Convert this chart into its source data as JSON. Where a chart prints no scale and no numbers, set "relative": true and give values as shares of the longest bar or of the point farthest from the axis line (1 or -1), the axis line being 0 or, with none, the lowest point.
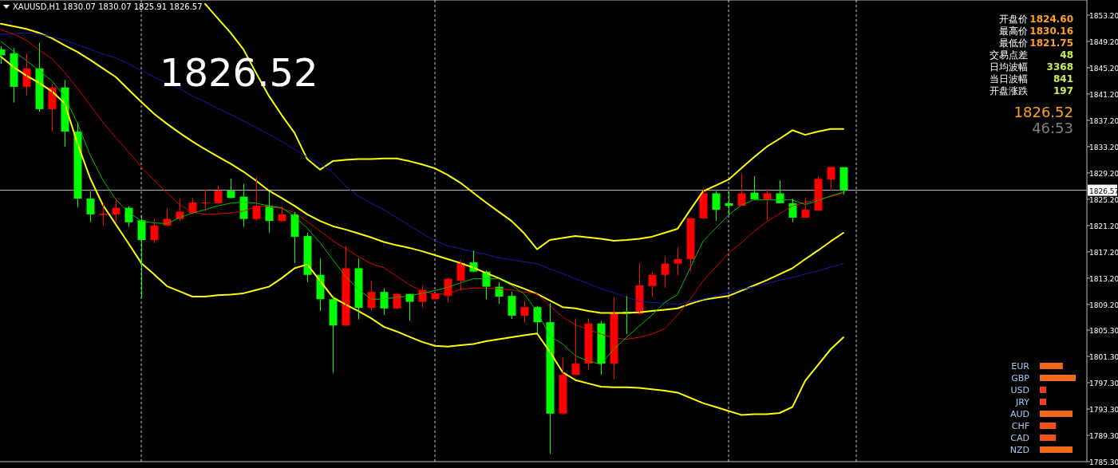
{
  "chart_data": [
    {
      "type": "candlestick",
      "title": "XAUUSD,H1  1830.07 1830.07 1825.91 1826.57",
      "categories": [
        null,
        null,
        null,
        null,
        null,
        null,
        null,
        null,
        null,
        null,
        null,
        null,
        null,
        null,
        null,
        null,
        null,
        null,
        null,
        null,
        null,
        null,
        null,
        null,
        null,
        null,
        null,
        null,
        null,
        null,
        null,
        null,
        null,
        null,
        null,
        null,
        null,
        null,
        null,
        null,
        null,
        null,
        null,
        null,
        null,
        null,
        null,
        null,
        null,
        null,
        null,
        null,
        null,
        null,
        null,
        null,
        null,
        null,
        null,
        null,
        null,
        null,
        null,
        null,
        null,
        null,
        null
      ],
      "ohlc": [
        [
          1848.0,
          1848.5,
          1845.8,
          1847.1
        ],
        [
          1847.4,
          1848.2,
          1839.9,
          1842.3
        ],
        [
          1842.3,
          1847.4,
          1841.0,
          1845.1
        ],
        [
          1845.1,
          1849.0,
          1838.5,
          1838.9
        ],
        [
          1838.9,
          1842.8,
          1835.5,
          1842.2
        ],
        [
          1842.2,
          1843.3,
          1833.2,
          1835.5
        ],
        [
          1835.5,
          1836.8,
          1824.0,
          1825.3
        ],
        [
          1825.3,
          1826.4,
          1821.7,
          1822.9
        ],
        [
          1822.8,
          1824.6,
          1821.2,
          1823.0
        ],
        [
          1822.9,
          1825.2,
          1821.7,
          1823.9
        ],
        [
          1823.9,
          1824.2,
          1821.0,
          1821.7
        ],
        [
          1822.0,
          1822.8,
          1810.3,
          1819.0
        ],
        [
          1819.0,
          1822.2,
          1818.5,
          1821.2
        ],
        [
          1821.2,
          1823.8,
          1821.0,
          1822.2
        ],
        [
          1822.2,
          1825.3,
          1821.9,
          1823.3
        ],
        [
          1823.1,
          1825.4,
          1822.9,
          1824.7
        ],
        [
          1824.6,
          1826.7,
          1823.3,
          1824.7
        ],
        [
          1824.6,
          1827.3,
          1824.4,
          1826.5
        ],
        [
          1826.5,
          1828.3,
          1825.3,
          1825.4
        ],
        [
          1825.6,
          1827.5,
          1821.0,
          1822.2
        ],
        [
          1822.2,
          1828.6,
          1821.9,
          1824.2
        ],
        [
          1824.2,
          1826.4,
          1820.1,
          1821.9
        ],
        [
          1821.9,
          1824.2,
          1821.7,
          1822.9
        ],
        [
          1822.9,
          1823.3,
          1815.5,
          1819.5
        ],
        [
          1819.6,
          1820.1,
          1812.6,
          1813.7
        ],
        [
          1813.7,
          1816.2,
          1808.2,
          1810.0
        ],
        [
          1810.0,
          1810.5,
          1798.8,
          1806.0
        ],
        [
          1806.0,
          1818.1,
          1805.9,
          1814.7
        ],
        [
          1814.7,
          1816.2,
          1806.9,
          1808.7
        ],
        [
          1808.7,
          1812.8,
          1808.2,
          1811.1
        ],
        [
          1811.1,
          1811.7,
          1807.6,
          1808.6
        ],
        [
          1808.6,
          1811.0,
          1808.5,
          1810.8
        ],
        [
          1810.8,
          1810.8,
          1806.7,
          1809.6
        ],
        [
          1809.6,
          1812.1,
          1808.7,
          1811.4
        ],
        [
          1810.0,
          1810.9,
          1809.9,
          1810.9
        ],
        [
          1810.5,
          1813.3,
          1809.6,
          1813.1
        ],
        [
          1812.8,
          1816.0,
          1811.3,
          1815.5
        ],
        [
          1815.6,
          1817.4,
          1814.1,
          1814.2
        ],
        [
          1814.2,
          1814.4,
          1810.0,
          1811.9
        ],
        [
          1811.9,
          1812.6,
          1809.3,
          1810.4
        ],
        [
          1810.5,
          1811.1,
          1807.0,
          1807.5
        ],
        [
          1807.5,
          1809.7,
          1806.4,
          1808.8
        ],
        [
          1808.8,
          1809.0,
          1804.8,
          1806.5
        ],
        [
          1806.5,
          1809.4,
          1786.5,
          1792.6
        ],
        [
          1792.6,
          1801.1,
          1792.4,
          1798.5
        ],
        [
          1798.5,
          1807.1,
          1798.4,
          1800.2
        ],
        [
          1800.2,
          1807.1,
          1799.3,
          1806.3
        ],
        [
          1806.3,
          1806.7,
          1798.5,
          1800.2
        ],
        [
          1800.2,
          1810.3,
          1797.8,
          1807.9
        ],
        [
          1808.1,
          1810.5,
          1804.7,
          1807.8
        ],
        [
          1807.8,
          1815.5,
          1807.6,
          1812.1
        ],
        [
          1812.0,
          1814.2,
          1810.3,
          1813.7
        ],
        [
          1813.7,
          1816.5,
          1811.7,
          1815.4
        ],
        [
          1815.4,
          1817.9,
          1813.6,
          1816.1
        ],
        [
          1816.1,
          1822.5,
          1814.2,
          1822.3
        ],
        [
          1822.3,
          1826.8,
          1822.2,
          1826.1
        ],
        [
          1826.1,
          1826.4,
          1821.9,
          1823.6
        ],
        [
          1824.6,
          1826.4,
          1822.8,
          1824.2
        ],
        [
          1824.2,
          1829.1,
          1824.2,
          1826.1
        ],
        [
          1826.2,
          1828.7,
          1825.1,
          1825.2
        ],
        [
          1825.2,
          1826.8,
          1822.0,
          1826.1
        ],
        [
          1826.1,
          1828.1,
          1824.6,
          1824.6
        ],
        [
          1824.6,
          1825.3,
          1821.7,
          1822.4
        ],
        [
          1822.4,
          1825.4,
          1822.4,
          1823.6
        ],
        [
          1823.5,
          1828.7,
          1823.4,
          1828.3
        ],
        [
          1828.2,
          1830.2,
          1826.5,
          1830.1
        ],
        [
          1830.07,
          1830.07,
          1825.91,
          1826.57
        ]
      ],
      "colors": [
        "#00ff00",
        "#00ff00",
        "#ff0000",
        "#00ff00",
        "#ff0000",
        "#00ff00",
        "#00ff00",
        "#00ff00",
        "#ff0000",
        "#ff0000",
        "#00ff00",
        "#00ff00",
        "#ff0000",
        "#ff0000",
        "#ff0000",
        "#ff0000",
        "#ff0000",
        "#ff0000",
        "#00ff00",
        "#00ff00",
        "#ff0000",
        "#00ff00",
        "#ff0000",
        "#00ff00",
        "#00ff00",
        "#00ff00",
        "#00ff00",
        "#ff0000",
        "#00ff00",
        "#ff0000",
        "#00ff00",
        "#ff0000",
        "#00ff00",
        "#ff0000",
        "#ff0000",
        "#ff0000",
        "#ff0000",
        "#00ff00",
        "#00ff00",
        "#00ff00",
        "#00ff00",
        "#ff0000",
        "#00ff00",
        "#00ff00",
        "#ff0000",
        "#ff0000",
        "#ff0000",
        "#00ff00",
        "#ff0000",
        "#00ff00",
        "#ff0000",
        "#ff0000",
        "#ff0000",
        "#ff0000",
        "#ff0000",
        "#ff0000",
        "#00ff00",
        "#00ff00",
        "#ff0000",
        "#00ff00",
        "#ff0000",
        "#00ff00",
        "#00ff00",
        "#ff0000",
        "#ff0000",
        "#ff0000",
        "#00ff00"
      ],
      "series": [
        {
          "type": "line",
          "color": "#ffff00",
          "values": [
            null,
            null,
            null,
            null,
            null,
            null,
            null,
            null,
            null,
            null,
            null,
            null,
            null,
            null,
            null,
            null,
            1854.9,
            1852.7,
            1850.5,
            1848.0,
            1844.4,
            1840.9,
            1838.0,
            1835.3,
            1831.3,
            1829.7,
            1831.0,
            1831.2,
            1831.3,
            1831.3,
            1831.4,
            1831.4,
            1831.0,
            1830.5,
            1829.9,
            1828.9,
            1827.7,
            1826.2,
            1824.7,
            1823.3,
            1821.9,
            1820.0,
            1817.6,
            1819.0,
            1819.3,
            1819.6,
            1819.4,
            1819.2,
            1818.9,
            1819.0,
            1819.2,
            1819.5,
            1820.1,
            1820.7,
            1823.6,
            1826.4,
            1827.3,
            1828.2,
            1829.9,
            1831.6,
            1833.2,
            1834.4,
            1835.7,
            1835.0,
            1835.5,
            1835.9,
            1835.9
          ]
        },
        {
          "type": "line",
          "color": "#ffff00",
          "values": [
            1851.9,
            1851.5,
            1851.1,
            1850.5,
            1849.7,
            1848.6,
            1847.6,
            1846.4,
            1845.1,
            1843.8,
            1841.9,
            1840.0,
            1838.2,
            1836.7,
            1835.3,
            1834.0,
            1832.8,
            1831.7,
            1830.6,
            1829.4,
            1828.0,
            1826.5,
            1825.4,
            1824.2,
            1822.9,
            1821.9,
            1821.1,
            1820.6,
            1820.0,
            1819.4,
            1818.7,
            1818.2,
            1817.8,
            1817.3,
            1816.7,
            1816.1,
            1815.5,
            1814.8,
            1814.0,
            1813.2,
            1812.3,
            1811.6,
            1810.8,
            1809.8,
            1808.8,
            1808.6,
            1808.2,
            1807.9,
            1807.9,
            1807.9,
            1808.0,
            1808.2,
            1808.4,
            1808.6,
            1809.3,
            1809.9,
            1810.2,
            1810.5,
            1811.3,
            1812.1,
            1812.9,
            1813.8,
            1814.7,
            1816.1,
            1817.4,
            1818.8,
            1820.1
          ]
        },
        {
          "type": "line",
          "color": "#ffff00",
          "values": [
            1846.9,
            1845.3,
            1844.0,
            1842.9,
            1841.6,
            1839.8,
            1833.7,
            1828.4,
            1824.3,
            1821.4,
            1818.5,
            1815.5,
            1813.8,
            1812.0,
            1811.2,
            1810.4,
            1810.4,
            1810.6,
            1810.7,
            1810.9,
            1811.4,
            1811.9,
            1813.2,
            1814.7,
            1815.3,
            1812.8,
            1810.3,
            1809.2,
            1808.2,
            1807.1,
            1805.8,
            1805.1,
            1804.3,
            1803.5,
            1802.9,
            1802.8,
            1803.0,
            1803.2,
            1803.6,
            1803.9,
            1804.2,
            1804.5,
            1804.8,
            1802.0,
            1798.9,
            1797.7,
            1797.2,
            1796.7,
            1796.6,
            1796.6,
            1796.5,
            1796.3,
            1796.1,
            1795.8,
            1795.0,
            1794.2,
            1793.6,
            1793.0,
            1792.4,
            1792.5,
            1792.5,
            1792.7,
            1793.6,
            1797.6,
            1800.0,
            1802.4,
            1804.2
          ]
        },
        {
          "type": "line",
          "color": "#1818b0",
          "values": [
            1850.3,
            1850.4,
            1850.5,
            1850.3,
            1849.9,
            1849.4,
            1848.7,
            1848.0,
            1847.3,
            1846.7,
            1845.8,
            1844.8,
            1843.8,
            1842.9,
            1842.0,
            1840.9,
            1840.0,
            1839.0,
            1838.1,
            1837.1,
            1836.1,
            1835.1,
            1834.0,
            1832.8,
            1831.6,
            1830.6,
            1829.3,
            1827.2,
            1825.7,
            1824.6,
            1823.6,
            1822.4,
            1821.2,
            1820.0,
            1818.9,
            1818.1,
            1817.7,
            1817.2,
            1816.8,
            1816.3,
            1816.0,
            1815.7,
            1815.4,
            1814.6,
            1813.9,
            1813.1,
            1812.4,
            1811.6,
            1811.0,
            1810.3,
            1809.7,
            1809.5,
            1809.4,
            1809.2,
            1809.6,
            1810.0,
            1810.5,
            1811.0,
            1811.5,
            1811.9,
            1812.4,
            1812.9,
            1813.3,
            1813.8,
            1814.3,
            1814.9,
            1815.4
          ]
        },
        {
          "type": "line",
          "color": "#e00000",
          "values": [
            1851.0,
            1850.3,
            1849.4,
            1847.9,
            1846.6,
            1844.5,
            1842.1,
            1839.5,
            1836.9,
            1834.6,
            1832.4,
            1830.1,
            1828.1,
            1826.2,
            1824.4,
            1823.2,
            1822.9,
            1823.0,
            1823.1,
            1823.4,
            1824.1,
            1824.1,
            1823.8,
            1823.2,
            1821.8,
            1820.4,
            1818.9,
            1817.7,
            1816.5,
            1815.4,
            1814.8,
            1813.5,
            1812.2,
            1811.2,
            1810.8,
            1810.8,
            1811.5,
            1811.7,
            1811.7,
            1811.6,
            1811.4,
            1811.1,
            1810.8,
            1809.0,
            1807.3,
            1806.1,
            1805.4,
            1804.7,
            1804.1,
            1803.9,
            1804.2,
            1804.7,
            1805.5,
            1807.6,
            1810.0,
            1812.8,
            1814.9,
            1817.0,
            1818.6,
            1820.3,
            1821.8,
            1823.0,
            1824.2,
            1824.7,
            1825.2,
            1825.6,
            1826.1
          ]
        },
        {
          "type": "line",
          "color": "#00c000",
          "values": [
            1849.2,
            1847.7,
            1846.3,
            1844.8,
            1843.2,
            1840.8,
            1836.8,
            1831.9,
            1828.1,
            1825.2,
            1823.2,
            1821.9,
            1821.6,
            1821.5,
            1822.4,
            1823.1,
            1823.6,
            1824.2,
            1824.6,
            1824.8,
            1824.6,
            1824.2,
            1823.9,
            1822.6,
            1820.8,
            1818.6,
            1816.0,
            1813.5,
            1811.5,
            1810.0,
            1810.0,
            1810.3,
            1810.5,
            1810.9,
            1811.3,
            1811.8,
            1812.5,
            1813.1,
            1813.1,
            1813.1,
            1812.1,
            1810.8,
            1808.1,
            1804.4,
            1803.2,
            1801.4,
            1800.6,
            1800.1,
            1802.4,
            1804.2,
            1805.9,
            1807.6,
            1809.5,
            1810.7,
            1814.8,
            1818.8,
            1820.8,
            1822.8,
            1824.3,
            1825.1,
            1825.1,
            1825.1,
            1825.1,
            1824.4,
            1825.0,
            1825.7,
            1826.3
          ]
        }
      ],
      "grid": "x",
      "ylim": [
        1785.3,
        1855.5
      ],
      "yticks": [
        {
          "value": 1853.2,
          "label": "1853.20"
        },
        {
          "value": 1849.2,
          "label": "1849.20"
        },
        {
          "value": 1845.2,
          "label": "1845.20"
        },
        {
          "value": 1841.2,
          "label": "1841.20"
        },
        {
          "value": 1837.2,
          "label": "1837.20"
        },
        {
          "value": 1833.2,
          "label": "1833.20"
        },
        {
          "value": 1829.2,
          "label": "1829.20"
        },
        {
          "value": 1825.2,
          "label": "1825.20"
        },
        {
          "value": 1821.2,
          "label": "1821.20"
        },
        {
          "value": 1817.2,
          "label": "1817.20"
        },
        {
          "value": 1813.2,
          "label": "1813.20"
        },
        {
          "value": 1809.2,
          "label": "1809.20"
        },
        {
          "value": 1805.3,
          "label": "1805.30"
        },
        {
          "value": 1801.3,
          "label": "1801.30"
        },
        {
          "value": 1797.3,
          "label": "1797.30"
        },
        {
          "value": 1793.3,
          "label": "1793.30"
        },
        {
          "value": 1789.3,
          "label": "1789.30"
        },
        {
          "value": 1785.3,
          "label": "1785.30"
        }
      ],
      "ref_lines": [
        {
          "axis": "y",
          "value": 1826.57,
          "label": "1826.57",
          "color": "#c0c0c0"
        }
      ],
      "annotations": [
        "1826.52"
      ]
    },
    {
      "type": "other",
      "annotations": [
        "开盘价",
        "1824.60",
        "最高价",
        "1830.16",
        "最低价",
        "1821.75",
        "交易点差",
        "48",
        "日均波幅",
        "3368",
        "当日波幅",
        "841",
        "开盘涨跌",
        "197",
        "1826.52",
        "46:53"
      ]
    },
    {
      "type": "bar",
      "orientation": "horizontal",
      "relative": true,
      "categories": [
        "EUR",
        "GBP",
        "USD",
        "JRY",
        "AUD",
        "CHF",
        "CAD",
        "NZD"
      ],
      "values": [
        0.64,
        1,
        0.18,
        0.18,
        0.91,
        0.45,
        0.45,
        0.91
      ],
      "colors": [
        "#f06a1e",
        "#f06a1e",
        "#f03c1e",
        "#f03c1e",
        "#f06a1e",
        "#f0501e",
        "#f0501e",
        "#f06a1e"
      ]
    }
  ]
}
